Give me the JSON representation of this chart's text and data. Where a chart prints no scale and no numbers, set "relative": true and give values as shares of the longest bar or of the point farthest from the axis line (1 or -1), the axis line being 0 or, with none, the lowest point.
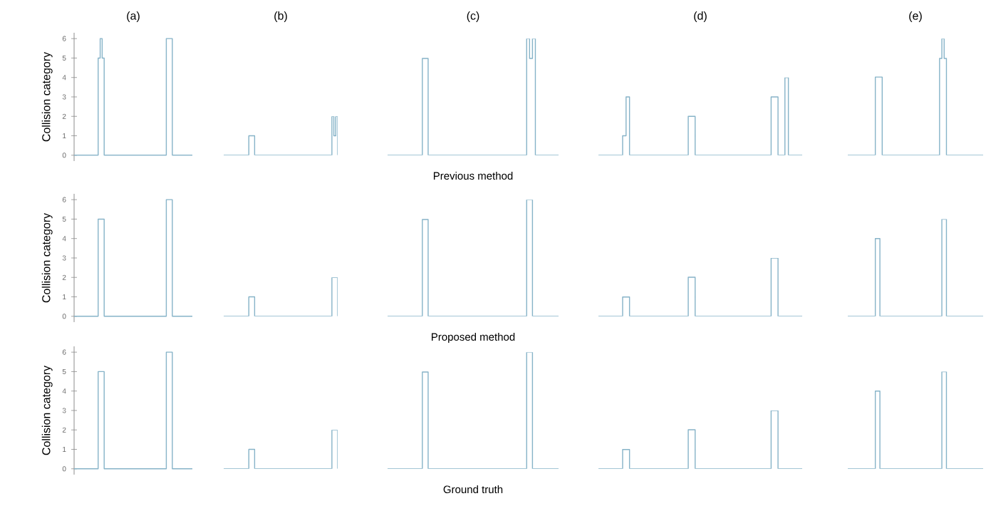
{
  "chart_data": [
    {
      "type": "step",
      "title": "(a)",
      "ylabel": "Collision category",
      "color": "#86b3c8",
      "ylim": [
        -0.3,
        6.3
      ],
      "yticks": [
        0,
        1,
        2,
        3,
        4,
        5,
        6
      ],
      "tick_labels": "y",
      "categories": [
        null,
        null,
        null,
        null,
        null,
        null,
        null,
        null,
        null,
        null,
        null,
        null,
        null,
        null,
        null,
        null,
        null,
        null,
        null,
        null,
        null,
        null,
        null,
        null,
        null,
        null,
        null,
        null,
        null,
        null,
        null,
        null,
        null,
        null,
        null,
        null,
        null,
        null,
        null,
        null,
        null,
        null,
        null,
        null,
        null,
        null,
        null,
        null,
        null,
        null,
        null,
        null,
        null,
        null,
        null,
        null,
        null,
        null,
        null,
        null
      ],
      "values": [
        0,
        0,
        0,
        0,
        0,
        0,
        0,
        0,
        0,
        0,
        0,
        0,
        5,
        6,
        5,
        0,
        0,
        0,
        0,
        0,
        0,
        0,
        0,
        0,
        0,
        0,
        0,
        0,
        0,
        0,
        0,
        0,
        0,
        0,
        0,
        0,
        0,
        0,
        0,
        0,
        0,
        0,
        0,
        0,
        0,
        0,
        6,
        6,
        6,
        0,
        0,
        0,
        0,
        0,
        0,
        0,
        0,
        0,
        0,
        0
      ]
    },
    {
      "type": "step",
      "title": "(b)",
      "relative": true,
      "color": "#86b3c8",
      "tick_labels": false,
      "categories": [
        null,
        null,
        null,
        null,
        null,
        null,
        null,
        null,
        null,
        null,
        null,
        null,
        null,
        null,
        null,
        null,
        null,
        null,
        null,
        null,
        null,
        null,
        null,
        null,
        null,
        null,
        null,
        null,
        null,
        null,
        null,
        null,
        null,
        null,
        null,
        null,
        null,
        null,
        null,
        null,
        null,
        null,
        null,
        null,
        null,
        null,
        null,
        null,
        null,
        null,
        null,
        null,
        null,
        null,
        null,
        null,
        null,
        null,
        null,
        null
      ],
      "values": [
        0,
        0,
        0,
        0,
        0,
        0,
        0,
        0,
        0,
        0,
        0,
        0,
        0,
        0.5,
        0.5,
        0.5,
        0,
        0,
        0,
        0,
        0,
        0,
        0,
        0,
        0,
        0,
        0,
        0,
        0,
        0,
        0,
        0,
        0,
        0,
        0,
        0,
        0,
        0,
        0,
        0,
        0,
        0,
        0,
        0,
        0,
        0,
        0,
        0,
        0,
        0,
        0,
        0,
        0,
        0,
        0,
        0,
        1,
        0.5,
        1,
        0
      ]
    },
    {
      "type": "step",
      "title": "(c)",
      "xlabel": "Previous method",
      "relative": true,
      "color": "#86b3c8",
      "tick_labels": false,
      "categories": [
        null,
        null,
        null,
        null,
        null,
        null,
        null,
        null,
        null,
        null,
        null,
        null,
        null,
        null,
        null,
        null,
        null,
        null,
        null,
        null,
        null,
        null,
        null,
        null,
        null,
        null,
        null,
        null,
        null,
        null,
        null,
        null,
        null,
        null,
        null,
        null,
        null,
        null,
        null,
        null,
        null,
        null,
        null,
        null,
        null,
        null,
        null,
        null,
        null,
        null,
        null,
        null,
        null,
        null,
        null,
        null,
        null,
        null,
        null,
        null
      ],
      "values": [
        0,
        0,
        0,
        0,
        0,
        0,
        0,
        0,
        0,
        0,
        0,
        0,
        0.83,
        0.83,
        0,
        0,
        0,
        0,
        0,
        0,
        0,
        0,
        0,
        0,
        0,
        0,
        0,
        0,
        0,
        0,
        0,
        0,
        0,
        0,
        0,
        0,
        0,
        0,
        0,
        0,
        0,
        0,
        0,
        0,
        0,
        0,
        0,
        0,
        1,
        0.83,
        1,
        0,
        0,
        0,
        0,
        0,
        0,
        0,
        0,
        0
      ]
    },
    {
      "type": "step",
      "title": "(d)",
      "relative": true,
      "color": "#86b3c8",
      "tick_labels": false,
      "categories": [
        null,
        null,
        null,
        null,
        null,
        null,
        null,
        null,
        null,
        null,
        null,
        null,
        null,
        null,
        null,
        null,
        null,
        null,
        null,
        null,
        null,
        null,
        null,
        null,
        null,
        null,
        null,
        null,
        null,
        null,
        null,
        null,
        null,
        null,
        null,
        null,
        null,
        null,
        null,
        null,
        null,
        null,
        null,
        null,
        null,
        null,
        null,
        null,
        null,
        null,
        null,
        null,
        null,
        null,
        null,
        null,
        null,
        null,
        null,
        null
      ],
      "values": [
        0,
        0,
        0,
        0,
        0,
        0,
        0,
        0.25,
        0.75,
        0,
        0,
        0,
        0,
        0,
        0,
        0,
        0,
        0,
        0,
        0,
        0,
        0,
        0,
        0,
        0,
        0,
        0.5,
        0.5,
        0,
        0,
        0,
        0,
        0,
        0,
        0,
        0,
        0,
        0,
        0,
        0,
        0,
        0,
        0,
        0,
        0,
        0,
        0,
        0,
        0,
        0,
        0.75,
        0.75,
        0,
        0,
        1,
        0,
        0,
        0,
        0,
        0
      ]
    },
    {
      "type": "step",
      "title": "(e)",
      "relative": true,
      "color": "#86b3c8",
      "tick_labels": false,
      "categories": [
        null,
        null,
        null,
        null,
        null,
        null,
        null,
        null,
        null,
        null,
        null,
        null,
        null,
        null,
        null,
        null,
        null,
        null,
        null,
        null,
        null,
        null,
        null,
        null,
        null,
        null,
        null,
        null,
        null,
        null,
        null,
        null,
        null,
        null,
        null,
        null,
        null,
        null,
        null,
        null,
        null,
        null,
        null,
        null,
        null,
        null,
        null,
        null,
        null,
        null,
        null,
        null,
        null,
        null,
        null,
        null,
        null,
        null,
        null,
        null
      ],
      "values": [
        0,
        0,
        0,
        0,
        0,
        0,
        0,
        0,
        0,
        0,
        0,
        0,
        0.67,
        0.67,
        0.67,
        0,
        0,
        0,
        0,
        0,
        0,
        0,
        0,
        0,
        0,
        0,
        0,
        0,
        0,
        0,
        0,
        0,
        0,
        0,
        0,
        0,
        0,
        0,
        0,
        0,
        0.83,
        1,
        0.83,
        0,
        0,
        0,
        0,
        0,
        0,
        0,
        0,
        0,
        0,
        0,
        0,
        0,
        0,
        0,
        0,
        0
      ]
    },
    {
      "type": "step",
      "ylabel": "Collision category",
      "color": "#86b3c8",
      "ylim": [
        -0.3,
        6.3
      ],
      "yticks": [
        0,
        1,
        2,
        3,
        4,
        5,
        6
      ],
      "tick_labels": "y",
      "categories": [
        null,
        null,
        null,
        null,
        null,
        null,
        null,
        null,
        null,
        null,
        null,
        null,
        null,
        null,
        null,
        null,
        null,
        null,
        null,
        null,
        null,
        null,
        null,
        null,
        null,
        null,
        null,
        null,
        null,
        null,
        null,
        null,
        null,
        null,
        null,
        null,
        null,
        null,
        null,
        null,
        null,
        null,
        null,
        null,
        null,
        null,
        null,
        null,
        null,
        null,
        null,
        null,
        null,
        null,
        null,
        null,
        null,
        null,
        null,
        null
      ],
      "values": [
        0,
        0,
        0,
        0,
        0,
        0,
        0,
        0,
        0,
        0,
        0,
        0,
        5,
        5,
        5,
        0,
        0,
        0,
        0,
        0,
        0,
        0,
        0,
        0,
        0,
        0,
        0,
        0,
        0,
        0,
        0,
        0,
        0,
        0,
        0,
        0,
        0,
        0,
        0,
        0,
        0,
        0,
        0,
        0,
        0,
        0,
        6,
        6,
        6,
        0,
        0,
        0,
        0,
        0,
        0,
        0,
        0,
        0,
        0,
        0
      ]
    },
    {
      "type": "step",
      "relative": true,
      "color": "#86b3c8",
      "tick_labels": false,
      "categories": [
        null,
        null,
        null,
        null,
        null,
        null,
        null,
        null,
        null,
        null,
        null,
        null,
        null,
        null,
        null,
        null,
        null,
        null,
        null,
        null,
        null,
        null,
        null,
        null,
        null,
        null,
        null,
        null,
        null,
        null,
        null,
        null,
        null,
        null,
        null,
        null,
        null,
        null,
        null,
        null,
        null,
        null,
        null,
        null,
        null,
        null,
        null,
        null,
        null,
        null,
        null,
        null,
        null,
        null,
        null,
        null,
        null,
        null,
        null,
        null
      ],
      "values": [
        0,
        0,
        0,
        0,
        0,
        0,
        0,
        0,
        0,
        0,
        0,
        0,
        0,
        0.5,
        0.5,
        0.5,
        0,
        0,
        0,
        0,
        0,
        0,
        0,
        0,
        0,
        0,
        0,
        0,
        0,
        0,
        0,
        0,
        0,
        0,
        0,
        0,
        0,
        0,
        0,
        0,
        0,
        0,
        0,
        0,
        0,
        0,
        0,
        0,
        0,
        0,
        0,
        0,
        0,
        0,
        0,
        0,
        1,
        1,
        1,
        0
      ]
    },
    {
      "type": "step",
      "xlabel": "Proposed method",
      "relative": true,
      "color": "#86b3c8",
      "tick_labels": false,
      "categories": [
        null,
        null,
        null,
        null,
        null,
        null,
        null,
        null,
        null,
        null,
        null,
        null,
        null,
        null,
        null,
        null,
        null,
        null,
        null,
        null,
        null,
        null,
        null,
        null,
        null,
        null,
        null,
        null,
        null,
        null,
        null,
        null,
        null,
        null,
        null,
        null,
        null,
        null,
        null,
        null,
        null,
        null,
        null,
        null,
        null,
        null,
        null,
        null,
        null,
        null,
        null,
        null,
        null,
        null,
        null,
        null,
        null,
        null,
        null,
        null
      ],
      "values": [
        0,
        0,
        0,
        0,
        0,
        0,
        0,
        0,
        0,
        0,
        0,
        0,
        0.83,
        0.83,
        0,
        0,
        0,
        0,
        0,
        0,
        0,
        0,
        0,
        0,
        0,
        0,
        0,
        0,
        0,
        0,
        0,
        0,
        0,
        0,
        0,
        0,
        0,
        0,
        0,
        0,
        0,
        0,
        0,
        0,
        0,
        0,
        0,
        0,
        1,
        1,
        0,
        0,
        0,
        0,
        0,
        0,
        0,
        0,
        0,
        0
      ]
    },
    {
      "type": "step",
      "relative": true,
      "color": "#86b3c8",
      "tick_labels": false,
      "categories": [
        null,
        null,
        null,
        null,
        null,
        null,
        null,
        null,
        null,
        null,
        null,
        null,
        null,
        null,
        null,
        null,
        null,
        null,
        null,
        null,
        null,
        null,
        null,
        null,
        null,
        null,
        null,
        null,
        null,
        null,
        null,
        null,
        null,
        null,
        null,
        null,
        null,
        null,
        null,
        null,
        null,
        null,
        null,
        null,
        null,
        null,
        null,
        null,
        null,
        null,
        null,
        null,
        null,
        null,
        null,
        null,
        null,
        null,
        null,
        null
      ],
      "values": [
        0,
        0,
        0,
        0,
        0,
        0,
        0,
        0.33,
        0.33,
        0,
        0,
        0,
        0,
        0,
        0,
        0,
        0,
        0,
        0,
        0,
        0,
        0,
        0,
        0,
        0,
        0,
        0.67,
        0.67,
        0,
        0,
        0,
        0,
        0,
        0,
        0,
        0,
        0,
        0,
        0,
        0,
        0,
        0,
        0,
        0,
        0,
        0,
        0,
        0,
        0,
        0,
        1,
        1,
        0,
        0,
        0,
        0,
        0,
        0,
        0,
        0
      ]
    },
    {
      "type": "step",
      "relative": true,
      "color": "#86b3c8",
      "tick_labels": false,
      "categories": [
        null,
        null,
        null,
        null,
        null,
        null,
        null,
        null,
        null,
        null,
        null,
        null,
        null,
        null,
        null,
        null,
        null,
        null,
        null,
        null,
        null,
        null,
        null,
        null,
        null,
        null,
        null,
        null,
        null,
        null,
        null,
        null,
        null,
        null,
        null,
        null,
        null,
        null,
        null,
        null,
        null,
        null,
        null,
        null,
        null,
        null,
        null,
        null,
        null,
        null,
        null,
        null,
        null,
        null,
        null,
        null,
        null,
        null,
        null,
        null
      ],
      "values": [
        0,
        0,
        0,
        0,
        0,
        0,
        0,
        0,
        0,
        0,
        0,
        0,
        0.8,
        0.8,
        0,
        0,
        0,
        0,
        0,
        0,
        0,
        0,
        0,
        0,
        0,
        0,
        0,
        0,
        0,
        0,
        0,
        0,
        0,
        0,
        0,
        0,
        0,
        0,
        0,
        0,
        0,
        1,
        1,
        0,
        0,
        0,
        0,
        0,
        0,
        0,
        0,
        0,
        0,
        0,
        0,
        0,
        0,
        0,
        0,
        0
      ]
    },
    {
      "type": "step",
      "ylabel": "Collision category",
      "color": "#86b3c8",
      "ylim": [
        -0.3,
        6.3
      ],
      "yticks": [
        0,
        1,
        2,
        3,
        4,
        5,
        6
      ],
      "tick_labels": "y",
      "categories": [
        null,
        null,
        null,
        null,
        null,
        null,
        null,
        null,
        null,
        null,
        null,
        null,
        null,
        null,
        null,
        null,
        null,
        null,
        null,
        null,
        null,
        null,
        null,
        null,
        null,
        null,
        null,
        null,
        null,
        null,
        null,
        null,
        null,
        null,
        null,
        null,
        null,
        null,
        null,
        null,
        null,
        null,
        null,
        null,
        null,
        null,
        null,
        null,
        null,
        null,
        null,
        null,
        null,
        null,
        null,
        null,
        null,
        null,
        null,
        null
      ],
      "values": [
        0,
        0,
        0,
        0,
        0,
        0,
        0,
        0,
        0,
        0,
        0,
        0,
        5,
        5,
        5,
        0,
        0,
        0,
        0,
        0,
        0,
        0,
        0,
        0,
        0,
        0,
        0,
        0,
        0,
        0,
        0,
        0,
        0,
        0,
        0,
        0,
        0,
        0,
        0,
        0,
        0,
        0,
        0,
        0,
        0,
        0,
        6,
        6,
        6,
        0,
        0,
        0,
        0,
        0,
        0,
        0,
        0,
        0,
        0,
        0
      ]
    },
    {
      "type": "step",
      "relative": true,
      "color": "#86b3c8",
      "tick_labels": false,
      "categories": [
        null,
        null,
        null,
        null,
        null,
        null,
        null,
        null,
        null,
        null,
        null,
        null,
        null,
        null,
        null,
        null,
        null,
        null,
        null,
        null,
        null,
        null,
        null,
        null,
        null,
        null,
        null,
        null,
        null,
        null,
        null,
        null,
        null,
        null,
        null,
        null,
        null,
        null,
        null,
        null,
        null,
        null,
        null,
        null,
        null,
        null,
        null,
        null,
        null,
        null,
        null,
        null,
        null,
        null,
        null,
        null,
        null,
        null,
        null,
        null
      ],
      "values": [
        0,
        0,
        0,
        0,
        0,
        0,
        0,
        0,
        0,
        0,
        0,
        0,
        0,
        0.5,
        0.5,
        0.5,
        0,
        0,
        0,
        0,
        0,
        0,
        0,
        0,
        0,
        0,
        0,
        0,
        0,
        0,
        0,
        0,
        0,
        0,
        0,
        0,
        0,
        0,
        0,
        0,
        0,
        0,
        0,
        0,
        0,
        0,
        0,
        0,
        0,
        0,
        0,
        0,
        0,
        0,
        0,
        0,
        1,
        1,
        1,
        0
      ]
    },
    {
      "type": "step",
      "xlabel": "Ground truth",
      "relative": true,
      "color": "#86b3c8",
      "tick_labels": false,
      "categories": [
        null,
        null,
        null,
        null,
        null,
        null,
        null,
        null,
        null,
        null,
        null,
        null,
        null,
        null,
        null,
        null,
        null,
        null,
        null,
        null,
        null,
        null,
        null,
        null,
        null,
        null,
        null,
        null,
        null,
        null,
        null,
        null,
        null,
        null,
        null,
        null,
        null,
        null,
        null,
        null,
        null,
        null,
        null,
        null,
        null,
        null,
        null,
        null,
        null,
        null,
        null,
        null,
        null,
        null,
        null,
        null,
        null,
        null,
        null,
        null
      ],
      "values": [
        0,
        0,
        0,
        0,
        0,
        0,
        0,
        0,
        0,
        0,
        0,
        0,
        0.83,
        0.83,
        0,
        0,
        0,
        0,
        0,
        0,
        0,
        0,
        0,
        0,
        0,
        0,
        0,
        0,
        0,
        0,
        0,
        0,
        0,
        0,
        0,
        0,
        0,
        0,
        0,
        0,
        0,
        0,
        0,
        0,
        0,
        0,
        0,
        0,
        1,
        1,
        0,
        0,
        0,
        0,
        0,
        0,
        0,
        0,
        0,
        0
      ]
    },
    {
      "type": "step",
      "relative": true,
      "color": "#86b3c8",
      "tick_labels": false,
      "categories": [
        null,
        null,
        null,
        null,
        null,
        null,
        null,
        null,
        null,
        null,
        null,
        null,
        null,
        null,
        null,
        null,
        null,
        null,
        null,
        null,
        null,
        null,
        null,
        null,
        null,
        null,
        null,
        null,
        null,
        null,
        null,
        null,
        null,
        null,
        null,
        null,
        null,
        null,
        null,
        null,
        null,
        null,
        null,
        null,
        null,
        null,
        null,
        null,
        null,
        null,
        null,
        null,
        null,
        null,
        null,
        null,
        null,
        null,
        null,
        null
      ],
      "values": [
        0,
        0,
        0,
        0,
        0,
        0,
        0,
        0.33,
        0.33,
        0,
        0,
        0,
        0,
        0,
        0,
        0,
        0,
        0,
        0,
        0,
        0,
        0,
        0,
        0,
        0,
        0,
        0.67,
        0.67,
        0,
        0,
        0,
        0,
        0,
        0,
        0,
        0,
        0,
        0,
        0,
        0,
        0,
        0,
        0,
        0,
        0,
        0,
        0,
        0,
        0,
        0,
        1,
        1,
        0,
        0,
        0,
        0,
        0,
        0,
        0,
        0
      ]
    },
    {
      "type": "step",
      "relative": true,
      "color": "#86b3c8",
      "tick_labels": false,
      "categories": [
        null,
        null,
        null,
        null,
        null,
        null,
        null,
        null,
        null,
        null,
        null,
        null,
        null,
        null,
        null,
        null,
        null,
        null,
        null,
        null,
        null,
        null,
        null,
        null,
        null,
        null,
        null,
        null,
        null,
        null,
        null,
        null,
        null,
        null,
        null,
        null,
        null,
        null,
        null,
        null,
        null,
        null,
        null,
        null,
        null,
        null,
        null,
        null,
        null,
        null,
        null,
        null,
        null,
        null,
        null,
        null,
        null,
        null,
        null,
        null
      ],
      "values": [
        0,
        0,
        0,
        0,
        0,
        0,
        0,
        0,
        0,
        0,
        0,
        0,
        0.8,
        0.8,
        0,
        0,
        0,
        0,
        0,
        0,
        0,
        0,
        0,
        0,
        0,
        0,
        0,
        0,
        0,
        0,
        0,
        0,
        0,
        0,
        0,
        0,
        0,
        0,
        0,
        0,
        0,
        1,
        1,
        0,
        0,
        0,
        0,
        0,
        0,
        0,
        0,
        0,
        0,
        0,
        0,
        0,
        0,
        0,
        0,
        0
      ]
    }
  ]
}
